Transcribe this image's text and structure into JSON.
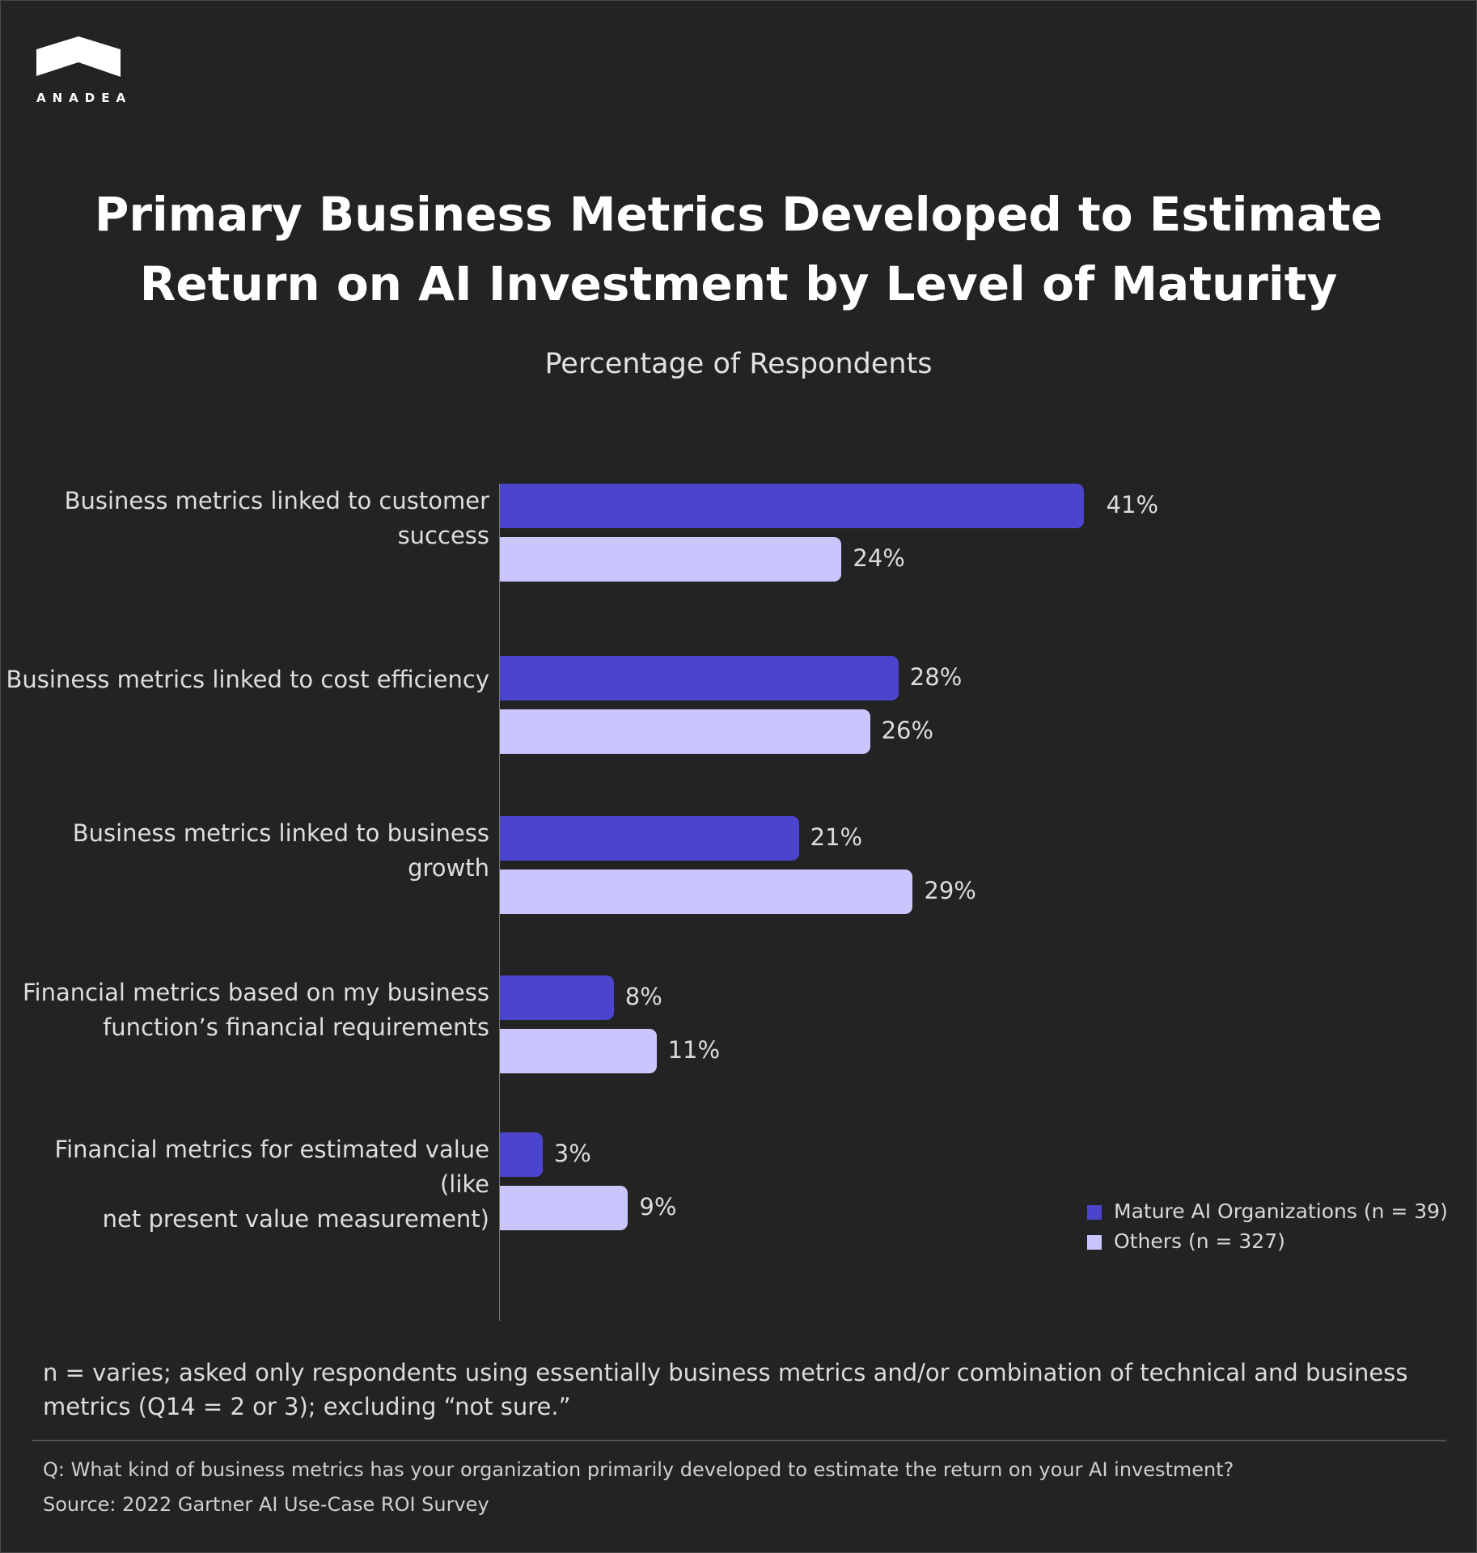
{
  "brand": {
    "name": "ANADEA",
    "logo_icon": "roof-chevron-icon"
  },
  "chart_data": {
    "type": "bar",
    "orientation": "horizontal",
    "title": "Primary Business Metrics Developed to Estimate Return on AI Investment by Level of Maturity",
    "title_lines": [
      "Primary Business Metrics Developed to Estimate",
      "Return on AI Investment by Level of Maturity"
    ],
    "subtitle": "Percentage of Respondents",
    "categories": [
      [
        "Business metrics linked to customer",
        "success"
      ],
      [
        "Business metrics linked to cost efficiency"
      ],
      [
        "Business metrics linked to business",
        "growth"
      ],
      [
        "Financial metrics based on my business",
        "function’s financial requirements"
      ],
      [
        "Financial metrics for estimated value (like",
        "net present value measurement)"
      ]
    ],
    "series": [
      {
        "name": "Mature AI Organizations (n = 39)",
        "color": "#4B45CE",
        "values": [
          41,
          28,
          21,
          8,
          3
        ],
        "labels": [
          "41%",
          "28%",
          "21%",
          "8%",
          "3%"
        ]
      },
      {
        "name": "Others (n = 327)",
        "color": "#C9C6FD",
        "values": [
          24,
          26,
          29,
          11,
          9
        ],
        "labels": [
          "24%",
          "26%",
          "29%",
          "11%",
          "9%"
        ]
      }
    ],
    "unit": "%",
    "grid": false,
    "legend_position": "bottom-right"
  },
  "footer": {
    "note": "n = varies; asked only respondents using essentially business metrics and/or combination of technical and business metrics (Q14 = 2 or 3); excluding “not sure.”",
    "question": "Q: What kind of business metrics has your organization primarily developed to estimate the return on your AI investment?",
    "source": "Source: 2022 Gartner AI Use-Case ROI Survey"
  }
}
